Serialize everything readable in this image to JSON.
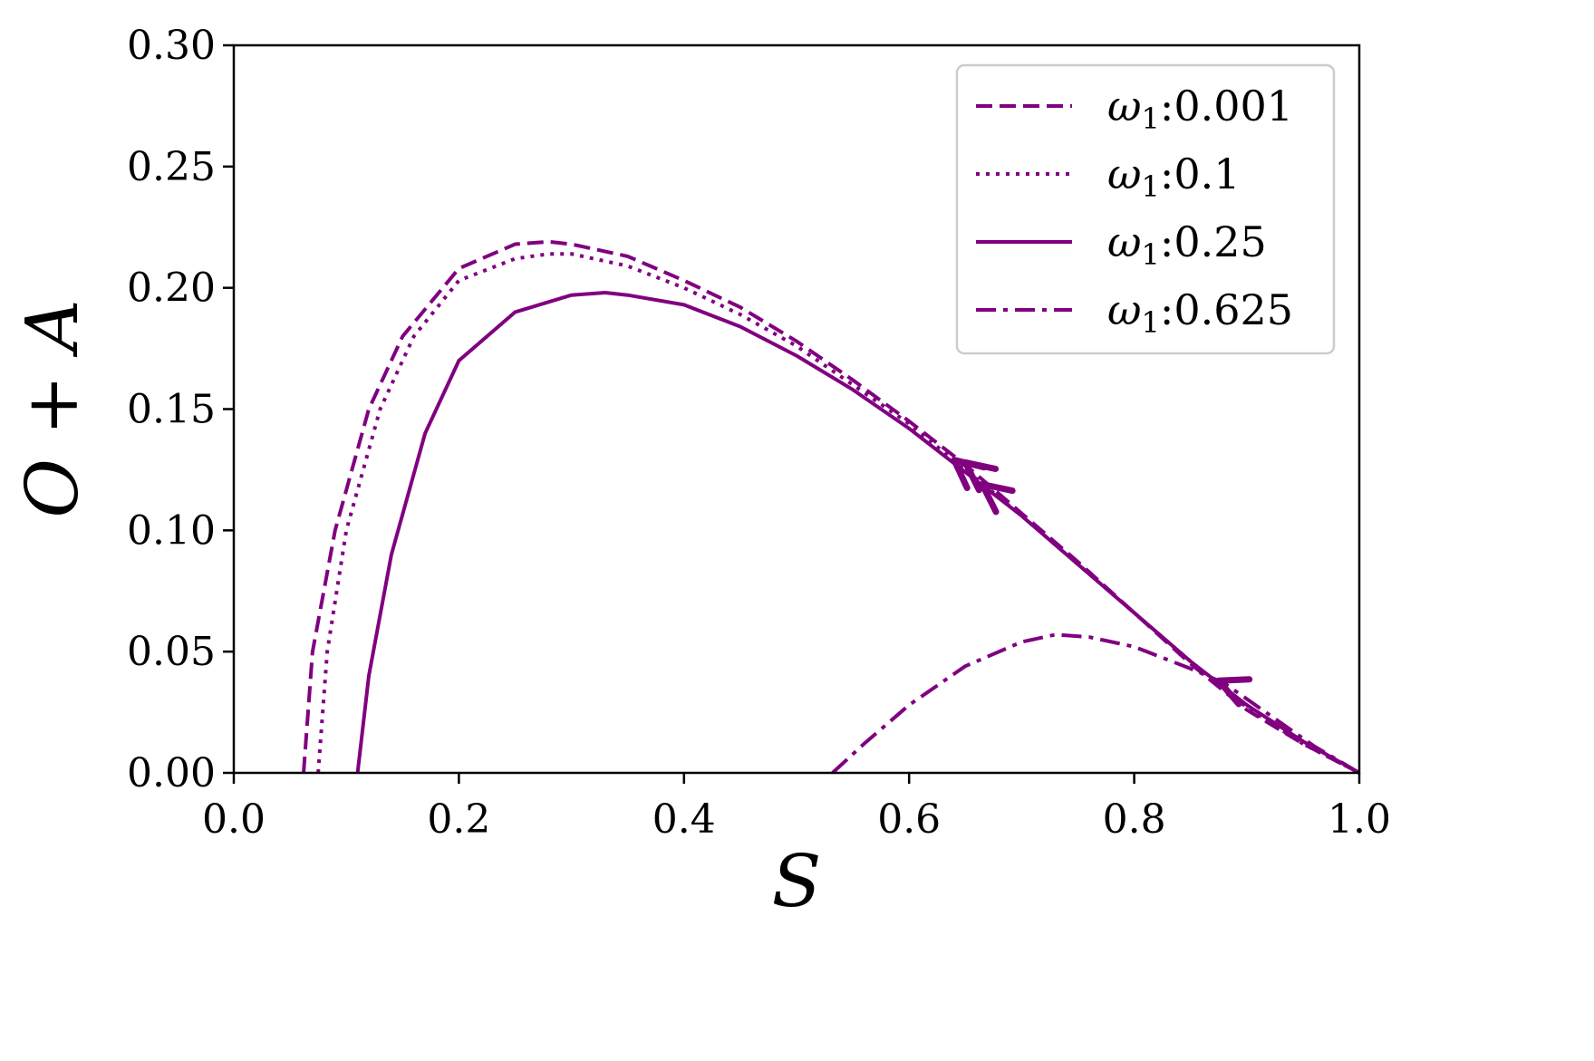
{
  "chart_data": {
    "type": "line",
    "xlabel": "S",
    "ylabel": "O + A",
    "xlim": [
      0.0,
      1.0
    ],
    "ylim": [
      0.0,
      0.3
    ],
    "x_ticks": [
      "0.0",
      "0.2",
      "0.4",
      "0.6",
      "0.8",
      "1.0"
    ],
    "y_ticks": [
      "0.00",
      "0.05",
      "0.10",
      "0.15",
      "0.20",
      "0.25",
      "0.30"
    ],
    "grid": false,
    "legend_position": "top-right",
    "color": "#800080",
    "series": [
      {
        "name": "ω₁:0.001",
        "symbol": "ω",
        "subscript": "1",
        "value": ":0.001",
        "style": "dashed",
        "points": [
          [
            0.062,
            0.0
          ],
          [
            0.07,
            0.05
          ],
          [
            0.09,
            0.1
          ],
          [
            0.12,
            0.15
          ],
          [
            0.15,
            0.18
          ],
          [
            0.2,
            0.208
          ],
          [
            0.25,
            0.218
          ],
          [
            0.28,
            0.219
          ],
          [
            0.3,
            0.218
          ],
          [
            0.35,
            0.213
          ],
          [
            0.4,
            0.203
          ],
          [
            0.45,
            0.192
          ],
          [
            0.5,
            0.178
          ],
          [
            0.55,
            0.162
          ],
          [
            0.6,
            0.145
          ],
          [
            0.65,
            0.127
          ],
          [
            0.7,
            0.107
          ],
          [
            0.75,
            0.087
          ],
          [
            0.8,
            0.066
          ],
          [
            0.85,
            0.045
          ],
          [
            0.9,
            0.026
          ],
          [
            0.95,
            0.012
          ],
          [
            1.0,
            0.0
          ]
        ],
        "arrows": [
          [
            0.65,
            0.128
          ]
        ]
      },
      {
        "name": "ω₁:0.1",
        "symbol": "ω",
        "subscript": "1",
        "value": ":0.1",
        "style": "dotted",
        "points": [
          [
            0.075,
            0.0
          ],
          [
            0.083,
            0.05
          ],
          [
            0.1,
            0.1
          ],
          [
            0.13,
            0.15
          ],
          [
            0.16,
            0.18
          ],
          [
            0.2,
            0.203
          ],
          [
            0.25,
            0.212
          ],
          [
            0.28,
            0.214
          ],
          [
            0.3,
            0.214
          ],
          [
            0.35,
            0.209
          ],
          [
            0.4,
            0.2
          ],
          [
            0.45,
            0.189
          ],
          [
            0.5,
            0.176
          ],
          [
            0.55,
            0.16
          ],
          [
            0.6,
            0.144
          ],
          [
            0.65,
            0.125
          ],
          [
            0.7,
            0.106
          ],
          [
            0.75,
            0.086
          ],
          [
            0.8,
            0.066
          ],
          [
            0.85,
            0.046
          ],
          [
            0.9,
            0.027
          ],
          [
            0.95,
            0.012
          ],
          [
            1.0,
            0.0
          ]
        ],
        "arrows": [
          [
            0.64,
            0.129
          ]
        ]
      },
      {
        "name": "ω₁:0.25",
        "symbol": "ω",
        "subscript": "1",
        "value": ":0.25",
        "style": "solid",
        "points": [
          [
            0.11,
            0.0
          ],
          [
            0.12,
            0.04
          ],
          [
            0.14,
            0.09
          ],
          [
            0.17,
            0.14
          ],
          [
            0.2,
            0.17
          ],
          [
            0.25,
            0.19
          ],
          [
            0.3,
            0.197
          ],
          [
            0.33,
            0.198
          ],
          [
            0.35,
            0.197
          ],
          [
            0.4,
            0.193
          ],
          [
            0.45,
            0.184
          ],
          [
            0.5,
            0.172
          ],
          [
            0.55,
            0.158
          ],
          [
            0.6,
            0.142
          ],
          [
            0.65,
            0.124
          ],
          [
            0.7,
            0.106
          ],
          [
            0.75,
            0.086
          ],
          [
            0.8,
            0.066
          ],
          [
            0.85,
            0.046
          ],
          [
            0.9,
            0.028
          ],
          [
            0.95,
            0.013
          ],
          [
            1.0,
            0.0
          ]
        ],
        "arrows": [
          [
            0.665,
            0.119
          ]
        ]
      },
      {
        "name": "ω₁:0.625",
        "symbol": "ω",
        "subscript": "1",
        "value": ":0.625",
        "style": "dashdot",
        "points": [
          [
            0.532,
            0.0
          ],
          [
            0.56,
            0.012
          ],
          [
            0.6,
            0.028
          ],
          [
            0.65,
            0.044
          ],
          [
            0.7,
            0.054
          ],
          [
            0.73,
            0.057
          ],
          [
            0.76,
            0.056
          ],
          [
            0.8,
            0.052
          ],
          [
            0.85,
            0.043
          ],
          [
            0.88,
            0.037
          ],
          [
            0.92,
            0.024
          ],
          [
            0.96,
            0.011
          ],
          [
            1.0,
            0.0
          ]
        ],
        "arrows": [
          [
            0.875,
            0.038
          ]
        ]
      }
    ]
  }
}
